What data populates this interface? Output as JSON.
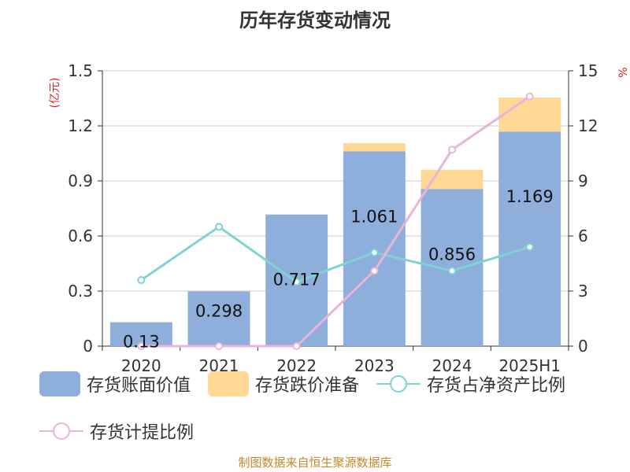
{
  "title": "历年存货变动情况",
  "source": "制图数据来自恒生聚源数据库",
  "source_color": "#c08a2a",
  "chart_data": {
    "type": "bar",
    "stacked": true,
    "categories": [
      "2020",
      "2021",
      "2022",
      "2023",
      "2024",
      "2025H1"
    ],
    "left_axis": {
      "unit": "(亿元)",
      "min": 0,
      "max": 1.5,
      "ticks": [
        "0",
        "0.3",
        "0.6",
        "0.9",
        "1.2",
        "1.5"
      ]
    },
    "right_axis": {
      "unit": "%",
      "min": 0,
      "max": 15,
      "ticks": [
        "0",
        "3",
        "6",
        "9",
        "12",
        "15"
      ]
    },
    "grid": true,
    "legend_position": "bottom",
    "series": [
      {
        "name": "存货账面价值",
        "type": "bar",
        "axis": "left",
        "color": "#8eaedb",
        "values": [
          0.13,
          0.298,
          0.717,
          1.061,
          0.856,
          1.169
        ],
        "labels": [
          "0.13",
          "0.298",
          "0.717",
          "1.061",
          "0.856",
          "1.169"
        ]
      },
      {
        "name": "存货跌价准备",
        "type": "bar",
        "axis": "left",
        "color": "#fed894",
        "values": [
          0.0,
          0.0,
          0.0,
          0.045,
          0.105,
          0.185
        ]
      },
      {
        "name": "存货占净资产比例",
        "type": "line",
        "axis": "right",
        "color": "#7fd3d3",
        "values": [
          3.6,
          6.5,
          3.5,
          5.1,
          4.1,
          5.4
        ]
      },
      {
        "name": "存货计提比例",
        "type": "line",
        "axis": "right",
        "color": "#e8b4d8",
        "values": [
          0,
          0,
          0,
          4.1,
          10.7,
          13.6
        ]
      }
    ]
  }
}
